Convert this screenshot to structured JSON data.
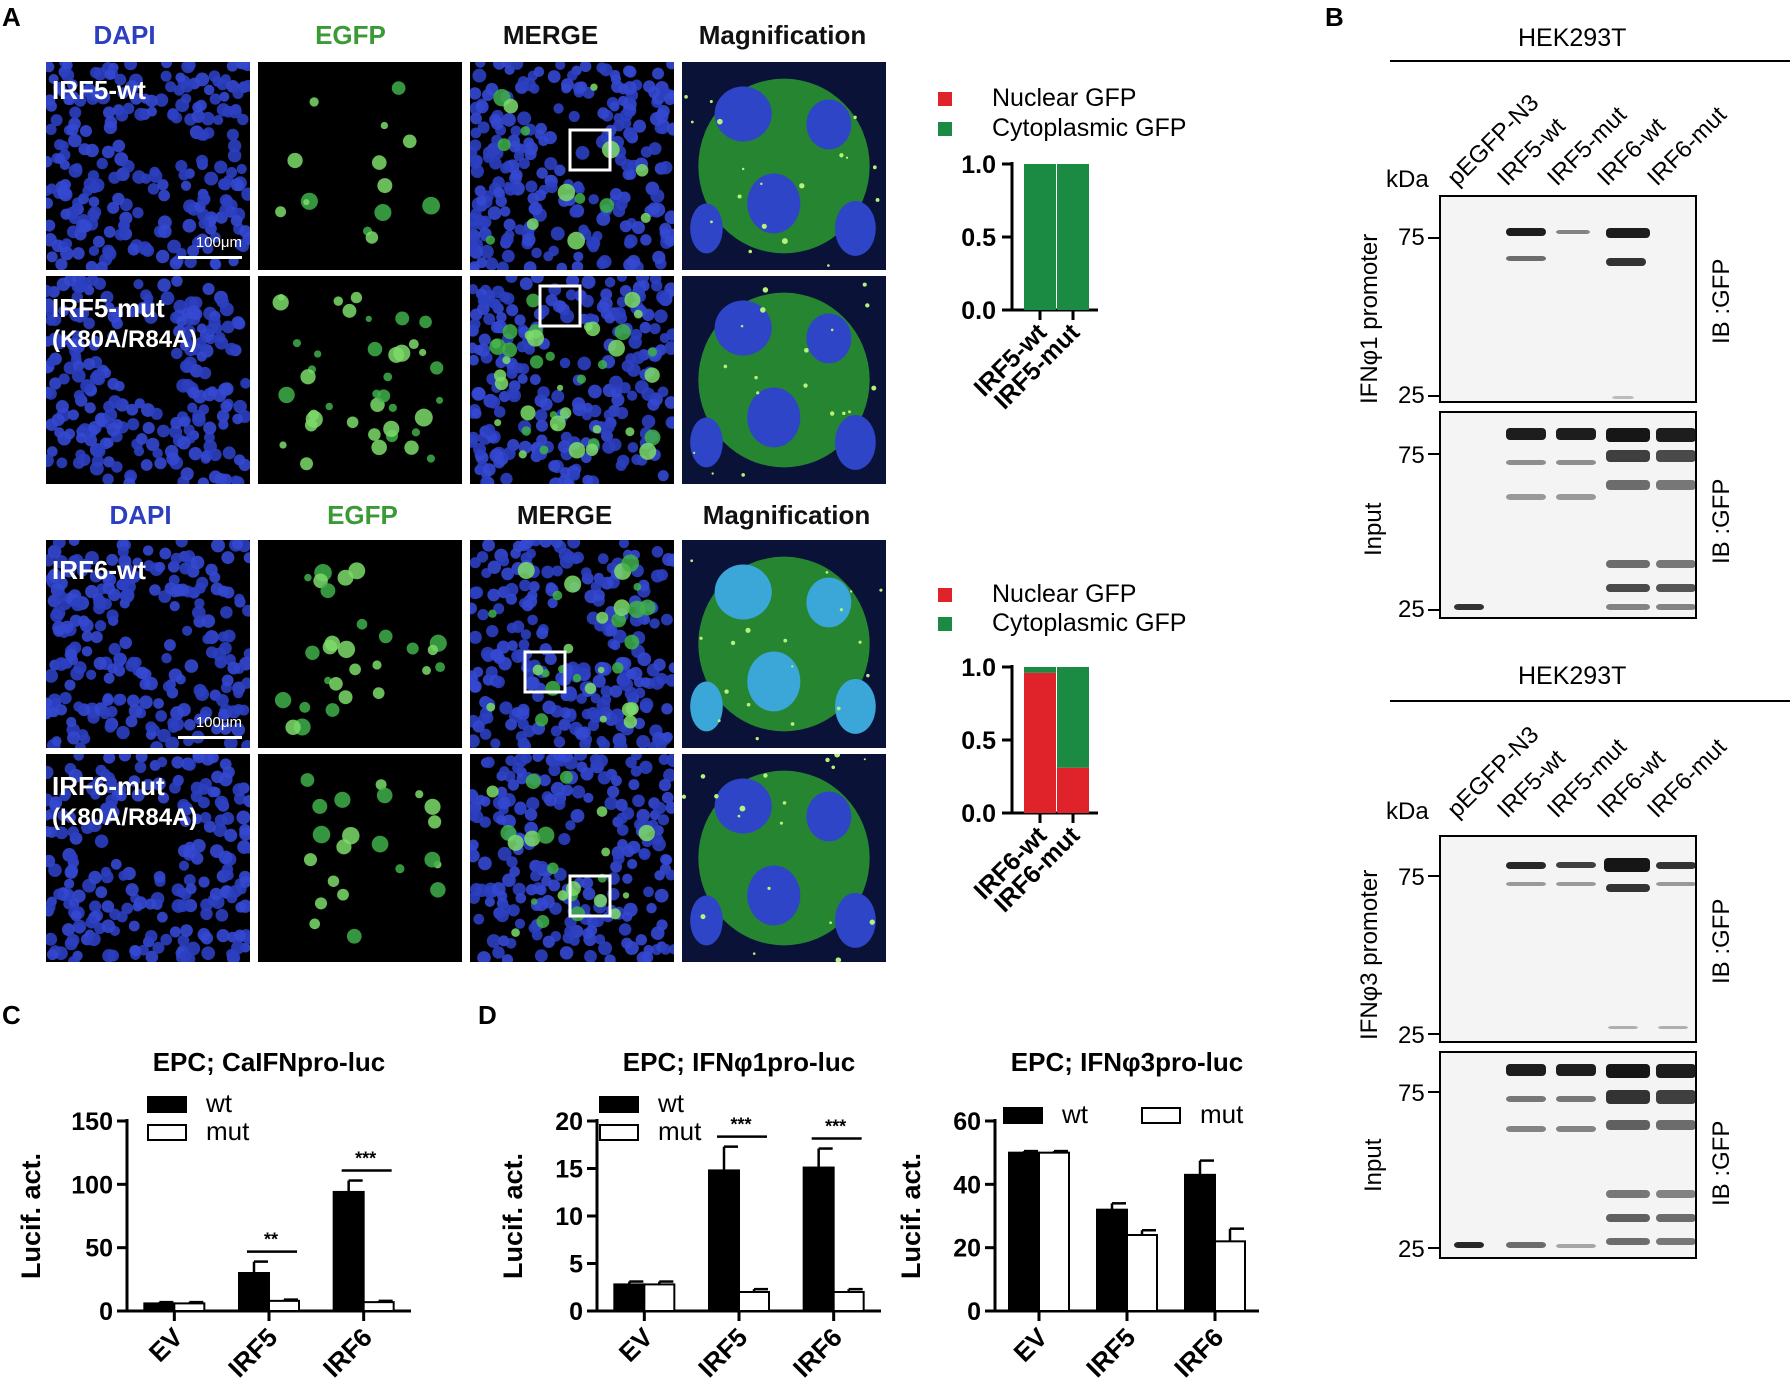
{
  "panels": {
    "A": "A",
    "B": "B",
    "C": "C",
    "D": "D"
  },
  "panelA": {
    "headers_top": [
      "DAPI",
      "EGFP",
      "MERGE",
      "Magnification"
    ],
    "headers_bottom": [
      "DAPI",
      "EGFP",
      "MERGE",
      "Magnification"
    ],
    "rows": [
      {
        "label": "IRF5-wt",
        "sublabel": ""
      },
      {
        "label": "IRF5-mut",
        "sublabel": "(K80A/R84A)"
      },
      {
        "label": "IRF6-wt",
        "sublabel": ""
      },
      {
        "label": "IRF6-mut",
        "sublabel": "(K80A/R84A)"
      }
    ],
    "scale_bar": "100μm",
    "legend": {
      "nuclear": "Nuclear GFP",
      "cytoplasmic": "Cytoplasmic GFP"
    },
    "colors": {
      "nuclear": "#e0222a",
      "cytoplasmic": "#1b8a43",
      "dapi": "#2b3fc0",
      "egfp": "#3a9a35"
    }
  },
  "panelB": {
    "cell_line": "HEK293T",
    "kda": "kDa",
    "lanes": [
      "pEGFP-N3",
      "IRF5-wt",
      "IRF5-mut",
      "IRF6-wt",
      "IRF6-mut"
    ],
    "blots": [
      {
        "side_label": "IFNφ1 promoter",
        "input_label": "Input",
        "ib": "IB :GFP",
        "markers_top": [
          "75",
          "25"
        ],
        "markers_input": [
          "75",
          "25"
        ]
      },
      {
        "side_label": "IFNφ3 promoter",
        "input_label": "Input",
        "ib": "IB :GFP",
        "markers_top": [
          "75",
          "25"
        ],
        "markers_input": [
          "75",
          "25"
        ]
      }
    ]
  },
  "chart_data": [
    {
      "type": "bar",
      "stacked": true,
      "categories": [
        "IRF5-wt",
        "IRF5-mut"
      ],
      "series": [
        {
          "name": "Nuclear GFP",
          "values": [
            0,
            0
          ]
        },
        {
          "name": "Cytoplasmic GFP",
          "values": [
            1.0,
            1.0
          ]
        }
      ],
      "ylim": [
        0,
        1.0
      ],
      "yticks": [
        "0.0",
        "0.5",
        "1.0"
      ]
    },
    {
      "type": "bar",
      "stacked": true,
      "categories": [
        "IRF6-wt",
        "IRF6-mut"
      ],
      "series": [
        {
          "name": "Nuclear GFP",
          "values": [
            0.96,
            0.31
          ]
        },
        {
          "name": "Cytoplasmic GFP",
          "values": [
            0.04,
            0.69
          ]
        }
      ],
      "ylim": [
        0,
        1.0
      ],
      "yticks": [
        "0.0",
        "0.5",
        "1.0"
      ]
    },
    {
      "type": "bar",
      "title": "EPC; CaIFNpro-luc",
      "ylabel": "Lucif. act.",
      "categories": [
        "EV",
        "IRF5",
        "IRF6"
      ],
      "series": [
        {
          "name": "wt",
          "values": [
            6,
            30,
            94
          ],
          "errors": [
            1,
            9,
            9
          ]
        },
        {
          "name": "mut",
          "values": [
            6,
            8,
            7
          ],
          "errors": [
            1,
            1,
            1
          ]
        }
      ],
      "ylim": [
        0,
        150
      ],
      "yticks": [
        "0",
        "50",
        "100",
        "150"
      ],
      "significance": [
        {
          "category": "IRF5",
          "label": "**"
        },
        {
          "category": "IRF6",
          "label": "***"
        }
      ]
    },
    {
      "type": "bar",
      "title": "EPC; IFNφ1pro-luc",
      "ylabel": "Lucif. act.",
      "categories": [
        "EV",
        "IRF5",
        "IRF6"
      ],
      "series": [
        {
          "name": "wt",
          "values": [
            2.8,
            14.8,
            15.1
          ],
          "errors": [
            0.3,
            2.5,
            2.0
          ]
        },
        {
          "name": "mut",
          "values": [
            2.8,
            2.0,
            2.0
          ],
          "errors": [
            0.3,
            0.3,
            0.3
          ]
        }
      ],
      "ylim": [
        0,
        20
      ],
      "yticks": [
        "0",
        "5",
        "10",
        "15",
        "20"
      ],
      "significance": [
        {
          "category": "IRF5",
          "label": "***"
        },
        {
          "category": "IRF6",
          "label": "***"
        }
      ]
    },
    {
      "type": "bar",
      "title": "EPC; IFNφ3pro-luc",
      "ylabel": "Lucif. act.",
      "categories": [
        "EV",
        "IRF5",
        "IRF6"
      ],
      "series": [
        {
          "name": "wt",
          "values": [
            50,
            32,
            43
          ],
          "errors": [
            0.5,
            2,
            4.5
          ]
        },
        {
          "name": "mut",
          "values": [
            50,
            24,
            22
          ],
          "errors": [
            0.5,
            1.5,
            4
          ]
        }
      ],
      "ylim": [
        0,
        60
      ],
      "yticks": [
        "0",
        "20",
        "40",
        "60"
      ]
    }
  ]
}
